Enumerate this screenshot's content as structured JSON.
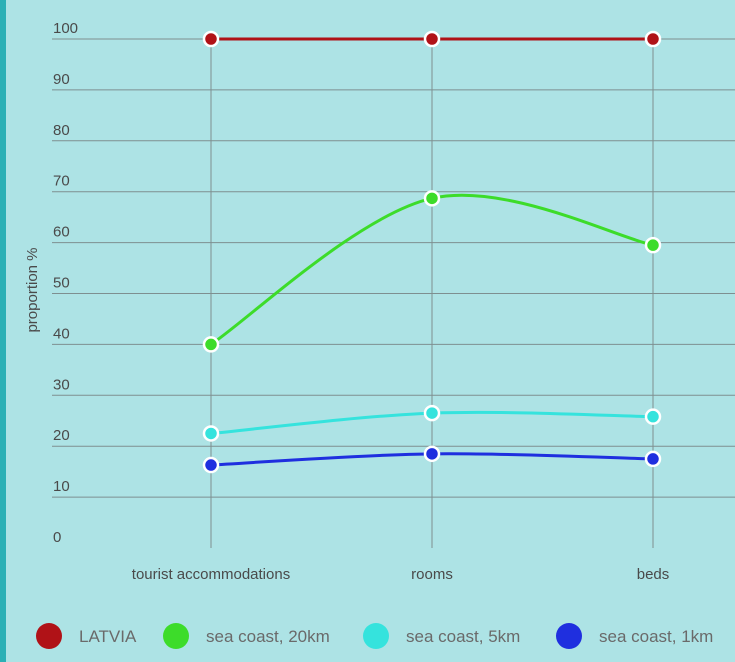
{
  "chart_data": {
    "type": "line",
    "title": "",
    "ylabel": "proportion %",
    "xlabel": "",
    "categories": [
      "tourist accommodations",
      "rooms",
      "beds"
    ],
    "ylim": [
      0,
      100
    ],
    "yticks": [
      0,
      10,
      20,
      30,
      40,
      50,
      60,
      70,
      80,
      90,
      100
    ],
    "grid": true,
    "legend_position": "bottom",
    "smooth": true,
    "series": [
      {
        "name": "LATVIA",
        "color": "#b01217",
        "values": [
          100,
          100,
          100
        ]
      },
      {
        "name": "sea coast, 20km",
        "color": "#3ddc2a",
        "values": [
          40,
          68.7,
          59.5
        ]
      },
      {
        "name": "sea coast, 5km",
        "color": "#35e3dd",
        "values": [
          22.5,
          26.5,
          25.8
        ]
      },
      {
        "name": "sea coast, 1km",
        "color": "#1f2fdf",
        "values": [
          16.3,
          18.5,
          17.5
        ]
      }
    ]
  },
  "colors": {
    "background": "#ade3e5",
    "left_border": "#2bb0b5",
    "gridline": "#7e8f90",
    "text": "#4a4a4a",
    "legend_text": "#6a6a6a"
  }
}
